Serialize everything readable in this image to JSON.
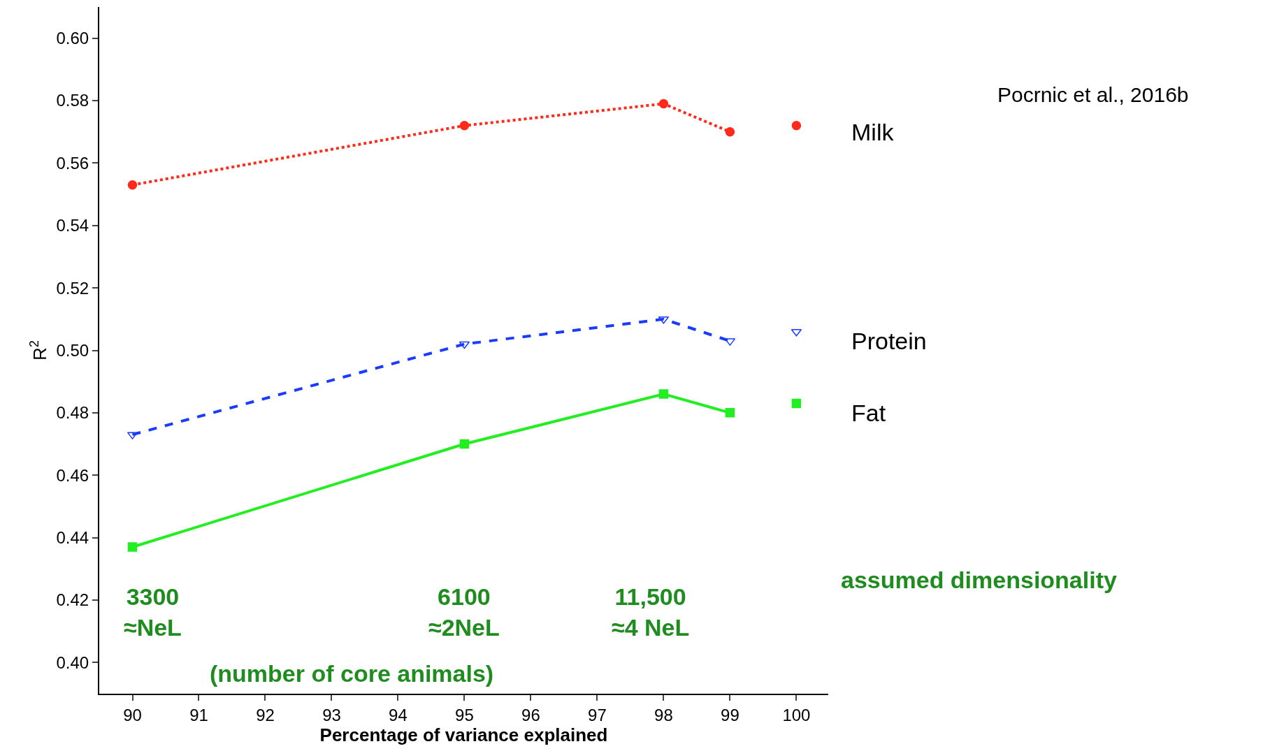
{
  "chart_data": {
    "type": "line",
    "xlabel": "Percentage of variance explained",
    "ylabel": "R$^{2}$",
    "xlim": [
      89.5,
      100.48
    ],
    "xticks": [
      90,
      91,
      92,
      93,
      94,
      95,
      96,
      97,
      98,
      99,
      100
    ],
    "ylim": [
      0.39,
      0.61
    ],
    "yticks": [
      {
        "value": 0.4,
        "label": "0.40"
      },
      {
        "value": 0.42,
        "label": "0.42"
      },
      {
        "value": 0.44,
        "label": "0.44"
      },
      {
        "value": 0.46,
        "label": "0.46"
      },
      {
        "value": 0.48,
        "label": "0.48"
      },
      {
        "value": 0.5,
        "label": "0.50"
      },
      {
        "value": 0.52,
        "label": "0.52"
      },
      {
        "value": 0.54,
        "label": "0.54"
      },
      {
        "value": 0.56,
        "label": "0.56"
      },
      {
        "value": 0.58,
        "label": "0.58"
      },
      {
        "value": 0.6,
        "label": "0.60"
      }
    ],
    "legend": false,
    "series": [
      {
        "name": "Milk",
        "color": "#ff2a1a",
        "x": [
          90,
          95,
          98,
          99
        ],
        "values": [
          0.553,
          0.572,
          0.579,
          0.57
        ],
        "line_style": "dotted",
        "marker": "circle"
      },
      {
        "type": "scatter",
        "color": "#ff2a1a",
        "x": [
          100
        ],
        "values": [
          0.572
        ],
        "marker": "circle"
      },
      {
        "name": "Protein",
        "color": "#1a3cff",
        "x": [
          90,
          95,
          98,
          99
        ],
        "values": [
          0.473,
          0.502,
          0.51,
          0.503
        ],
        "line_style": "dashed",
        "marker": "triangle"
      },
      {
        "type": "scatter",
        "color": "#1a3cff",
        "x": [
          100
        ],
        "values": [
          0.506
        ],
        "marker": "triangle"
      },
      {
        "name": "Fat",
        "color": "#22ee22",
        "x": [
          90,
          95,
          98,
          99
        ],
        "values": [
          0.437,
          0.47,
          0.486,
          0.48
        ],
        "line_style": "solid",
        "marker": "square"
      },
      {
        "type": "scatter",
        "color": "#22ee22",
        "x": [
          100
        ],
        "values": [
          0.483
        ],
        "marker": "square"
      }
    ],
    "annotations": [
      "3300\n≈NeL",
      "6100\n≈2NeL",
      "11,500\n≈4 NeL",
      "(number of core animals)",
      "assumed dimensionality",
      "Pocrnic et al., 2016b"
    ]
  }
}
